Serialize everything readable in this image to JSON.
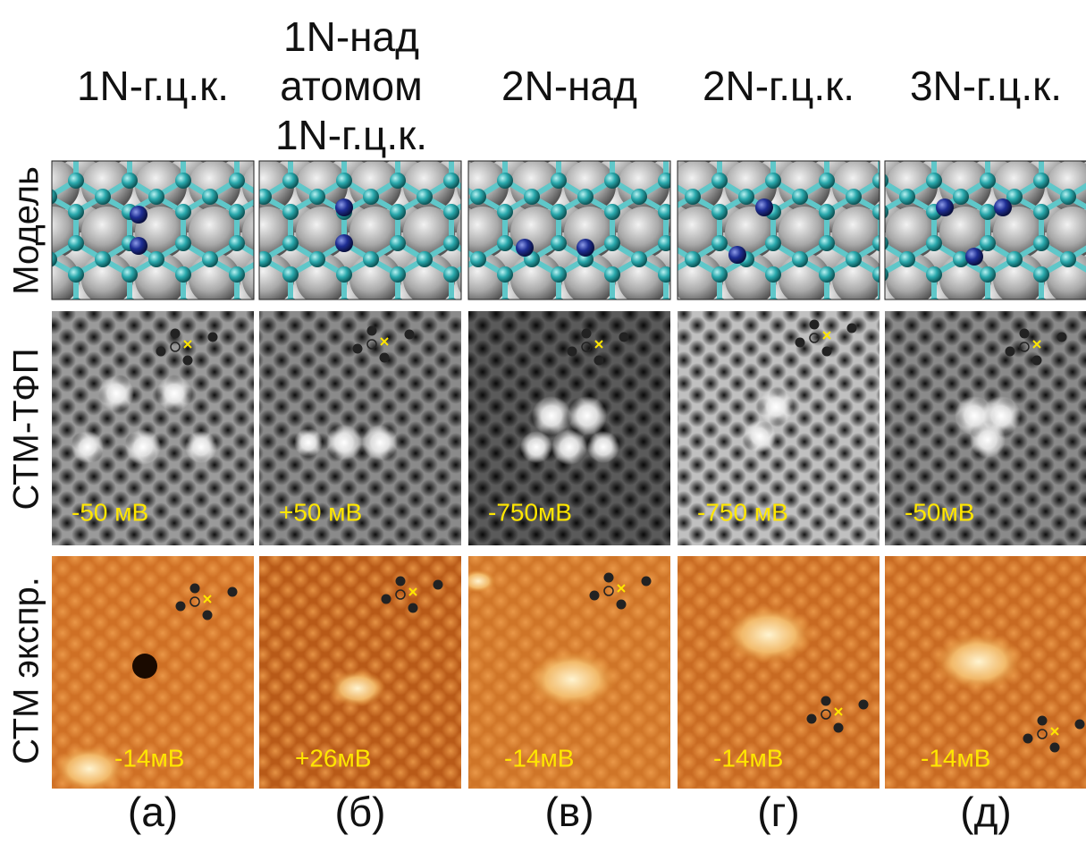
{
  "row_labels": [
    "Модель",
    "СТМ-ТФП",
    "СТМ экспр."
  ],
  "columns": [
    {
      "header": [
        "1N-г.ц.к."
      ],
      "dft_bias": "-50 мВ",
      "exp_bias": "-14мВ",
      "caption": "(а)"
    },
    {
      "header": [
        "1N-над",
        "атомом",
        "1N-г.ц.к."
      ],
      "dft_bias": "+50 мВ",
      "exp_bias": "+26мВ",
      "caption": "(б)"
    },
    {
      "header": [
        "2N-над"
      ],
      "dft_bias": "-750мВ",
      "exp_bias": "-14мВ",
      "caption": "(в)"
    },
    {
      "header": [
        "2N-г.ц.к."
      ],
      "dft_bias": "-750 мВ",
      "exp_bias": "-14мВ",
      "caption": "(г)"
    },
    {
      "header": [
        "3N-г.ц.к."
      ],
      "dft_bias": "-50мВ",
      "exp_bias": "-14мВ",
      "caption": "(д)"
    }
  ]
}
